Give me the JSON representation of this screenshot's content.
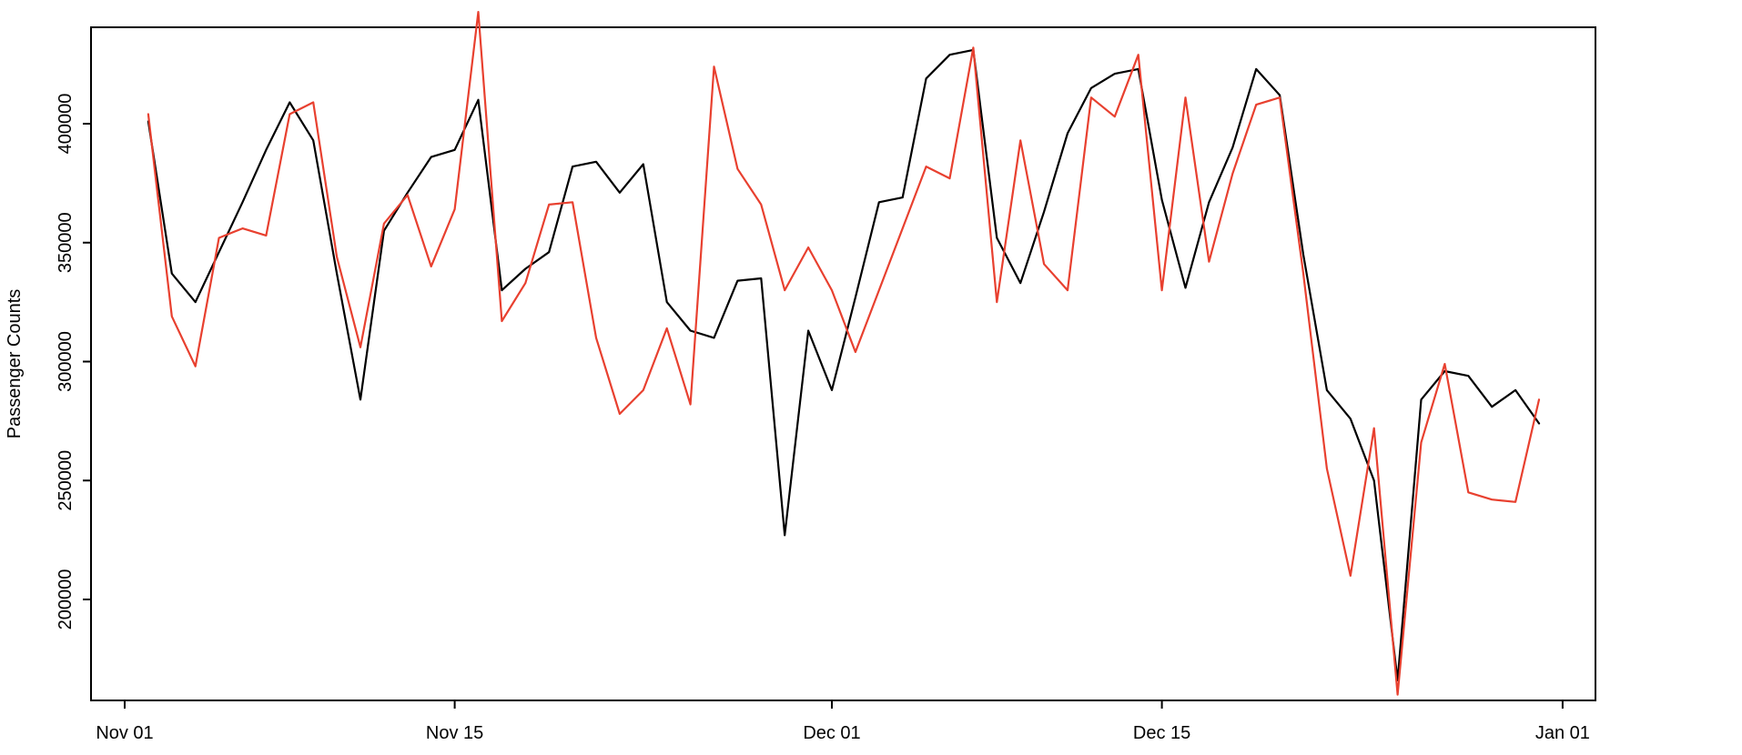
{
  "page": {
    "background_color": "#ffffff"
  },
  "chart_data": {
    "type": "line",
    "title": "",
    "xlabel": "",
    "ylabel": "Passenger Counts",
    "grid": false,
    "legend": "none",
    "axis_color": "#000000",
    "x_axis": {
      "tick_labels": [
        "Nov 01",
        "Nov 15",
        "Dec 01",
        "Dec 15",
        "Jan 01"
      ],
      "tick_day_offsets": [
        0,
        14,
        30,
        44,
        61
      ]
    },
    "y_axis": {
      "tick_values": [
        200000,
        250000,
        300000,
        350000,
        400000
      ],
      "tick_labels": [
        "200000",
        "250000",
        "300000",
        "350000",
        "400000"
      ],
      "range_shown": [
        157500,
        440500
      ]
    },
    "dates": [
      "Nov 02",
      "Nov 03",
      "Nov 04",
      "Nov 05",
      "Nov 06",
      "Nov 07",
      "Nov 08",
      "Nov 09",
      "Nov 10",
      "Nov 11",
      "Nov 12",
      "Nov 13",
      "Nov 14",
      "Nov 15",
      "Nov 16",
      "Nov 17",
      "Nov 18",
      "Nov 19",
      "Nov 20",
      "Nov 21",
      "Nov 22",
      "Nov 23",
      "Nov 24",
      "Nov 25",
      "Nov 26",
      "Nov 27",
      "Nov 28",
      "Nov 29",
      "Nov 30",
      "Dec 01",
      "Dec 02",
      "Dec 03",
      "Dec 04",
      "Dec 05",
      "Dec 06",
      "Dec 07",
      "Dec 08",
      "Dec 09",
      "Dec 10",
      "Dec 11",
      "Dec 12",
      "Dec 13",
      "Dec 14",
      "Dec 15",
      "Dec 16",
      "Dec 17",
      "Dec 18",
      "Dec 19",
      "Dec 20",
      "Dec 21",
      "Dec 22",
      "Dec 23",
      "Dec 24",
      "Dec 25",
      "Dec 26",
      "Dec 27",
      "Dec 28",
      "Dec 29",
      "Dec 30",
      "Dec 31"
    ],
    "series": [
      {
        "name": "series-black",
        "color": "#000000",
        "values": [
          401000,
          337000,
          325000,
          346000,
          367000,
          389000,
          409000,
          393000,
          337000,
          284000,
          355000,
          371000,
          386000,
          389000,
          410000,
          330000,
          339000,
          346000,
          382000,
          384000,
          371000,
          383000,
          325000,
          313000,
          310000,
          334000,
          335000,
          227000,
          313000,
          288000,
          327000,
          367000,
          369000,
          419000,
          429000,
          431000,
          352000,
          333000,
          363000,
          396000,
          415000,
          421000,
          423000,
          368000,
          331000,
          367000,
          390000,
          423000,
          412000,
          345000,
          288000,
          276000,
          250000,
          166000,
          284000,
          296000,
          294000,
          281000,
          288000,
          274000
        ]
      },
      {
        "name": "series-red",
        "color": "#e8402f",
        "values": [
          404000,
          319000,
          298000,
          352000,
          356000,
          353000,
          404000,
          409000,
          344000,
          306000,
          358000,
          370000,
          340000,
          364000,
          447000,
          317000,
          333000,
          366000,
          367000,
          310000,
          278000,
          288000,
          314000,
          282000,
          424000,
          381000,
          366000,
          330000,
          348000,
          330000,
          304000,
          330000,
          356000,
          382000,
          377000,
          432000,
          325000,
          393000,
          341000,
          330000,
          411000,
          403000,
          429000,
          330000,
          411000,
          342000,
          379000,
          408000,
          411000,
          337000,
          255000,
          210000,
          272000,
          160000,
          266000,
          299000,
          245000,
          242000,
          241000,
          284000
        ]
      }
    ]
  }
}
